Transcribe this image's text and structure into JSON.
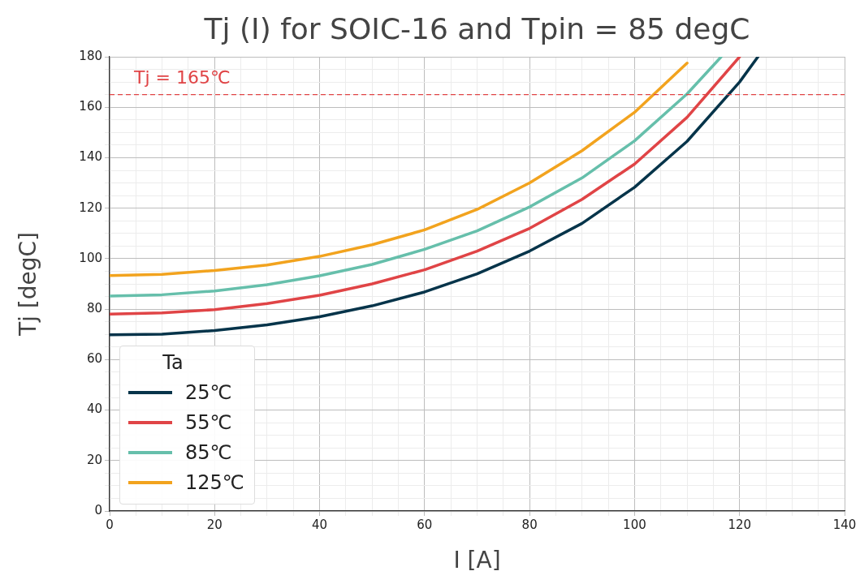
{
  "chart_data": {
    "type": "line",
    "title": "Tj (I) for SOIC-16 and Tpin = 85 degC",
    "xlabel": "I [A]",
    "ylabel": "Tj [degC]",
    "legend_title": "Ta",
    "series": [
      {
        "name": "25℃",
        "color": "#06344a",
        "x": [
          0,
          10,
          20,
          30,
          40,
          50,
          60,
          70,
          80,
          90,
          100,
          110,
          120,
          123.5
        ],
        "values": [
          69.8,
          70.1,
          71.5,
          73.8,
          77,
          81.3,
          86.8,
          94,
          103,
          114,
          128.3,
          146.5,
          170,
          180
        ]
      },
      {
        "name": "55℃",
        "color": "#e04446",
        "x": [
          0,
          10,
          20,
          30,
          40,
          50,
          60,
          70,
          80,
          90,
          100,
          110,
          120
        ],
        "values": [
          78,
          78.5,
          79.8,
          82.2,
          85.5,
          90,
          95.6,
          103,
          112,
          123.5,
          137.5,
          156,
          180
        ]
      },
      {
        "name": "85℃",
        "color": "#66bfab",
        "x": [
          0,
          10,
          20,
          30,
          40,
          50,
          60,
          70,
          80,
          90,
          100,
          110,
          116.5
        ],
        "values": [
          85.2,
          85.7,
          87.2,
          89.7,
          93.2,
          97.7,
          103.7,
          111,
          120.5,
          132,
          146.7,
          165.3,
          180
        ]
      },
      {
        "name": "125℃",
        "color": "#f2a31e",
        "x": [
          0,
          10,
          20,
          30,
          40,
          50,
          60,
          70,
          80,
          90,
          100,
          110
        ],
        "values": [
          93.3,
          93.8,
          95.3,
          97.5,
          100.9,
          105.5,
          111.4,
          119.5,
          130,
          142.8,
          158,
          177.5
        ]
      }
    ],
    "xlim": [
      0,
      140
    ],
    "ylim": [
      0,
      180
    ],
    "xticks": [
      0,
      {
        "value": 5,
        "label": null
      },
      {
        "value": 10,
        "label": null
      },
      {
        "value": 15,
        "label": null
      },
      20,
      {
        "value": 25,
        "label": null
      },
      {
        "value": 30,
        "label": null
      },
      {
        "value": 35,
        "label": null
      },
      40,
      {
        "value": 45,
        "label": null
      },
      {
        "value": 50,
        "label": null
      },
      {
        "value": 55,
        "label": null
      },
      60,
      {
        "value": 65,
        "label": null
      },
      {
        "value": 70,
        "label": null
      },
      {
        "value": 75,
        "label": null
      },
      80,
      {
        "value": 85,
        "label": null
      },
      {
        "value": 90,
        "label": null
      },
      {
        "value": 95,
        "label": null
      },
      100,
      {
        "value": 105,
        "label": null
      },
      {
        "value": 110,
        "label": null
      },
      {
        "value": 115,
        "label": null
      },
      120,
      {
        "value": 125,
        "label": null
      },
      {
        "value": 130,
        "label": null
      },
      {
        "value": 135,
        "label": null
      },
      140
    ],
    "yticks": [
      0,
      {
        "value": 5,
        "label": null
      },
      {
        "value": 10,
        "label": null
      },
      {
        "value": 15,
        "label": null
      },
      20,
      {
        "value": 25,
        "label": null
      },
      {
        "value": 30,
        "label": null
      },
      {
        "value": 35,
        "label": null
      },
      40,
      {
        "value": 45,
        "label": null
      },
      {
        "value": 50,
        "label": null
      },
      {
        "value": 55,
        "label": null
      },
      60,
      {
        "value": 65,
        "label": null
      },
      {
        "value": 70,
        "label": null
      },
      {
        "value": 75,
        "label": null
      },
      80,
      {
        "value": 85,
        "label": null
      },
      {
        "value": 90,
        "label": null
      },
      {
        "value": 95,
        "label": null
      },
      100,
      {
        "value": 105,
        "label": null
      },
      {
        "value": 110,
        "label": null
      },
      {
        "value": 115,
        "label": null
      },
      120,
      {
        "value": 125,
        "label": null
      },
      {
        "value": 130,
        "label": null
      },
      {
        "value": 135,
        "label": null
      },
      140,
      {
        "value": 145,
        "label": null
      },
      {
        "value": 150,
        "label": null
      },
      {
        "value": 155,
        "label": null
      },
      160,
      {
        "value": 165,
        "label": null
      },
      {
        "value": 170,
        "label": null
      },
      {
        "value": 175,
        "label": null
      },
      180
    ],
    "ref_lines": [
      {
        "axis": "y",
        "value": 165,
        "label": "Tj = 165℃",
        "color": "#e04446",
        "line_style": "dashed"
      }
    ],
    "grid": true,
    "legend": "bottom left",
    "marker": "none",
    "line_style": "solid"
  }
}
